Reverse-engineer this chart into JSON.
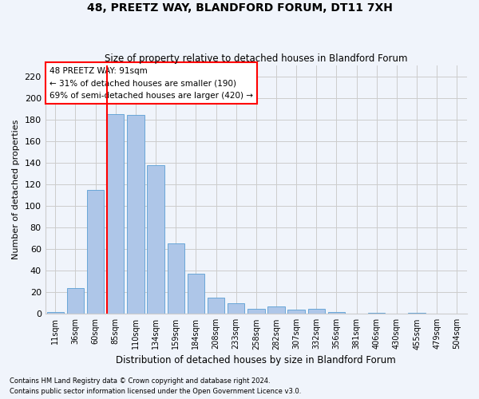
{
  "title1": "48, PREETZ WAY, BLANDFORD FORUM, DT11 7XH",
  "title2": "Size of property relative to detached houses in Blandford Forum",
  "xlabel": "Distribution of detached houses by size in Blandford Forum",
  "ylabel": "Number of detached properties",
  "footnote1": "Contains HM Land Registry data © Crown copyright and database right 2024.",
  "footnote2": "Contains public sector information licensed under the Open Government Licence v3.0.",
  "annotation_title": "48 PREETZ WAY: 91sqm",
  "annotation_line1": "← 31% of detached houses are smaller (190)",
  "annotation_line2": "69% of semi-detached houses are larger (420) →",
  "bar_labels": [
    "11sqm",
    "36sqm",
    "60sqm",
    "85sqm",
    "110sqm",
    "134sqm",
    "159sqm",
    "184sqm",
    "208sqm",
    "233sqm",
    "258sqm",
    "282sqm",
    "307sqm",
    "332sqm",
    "356sqm",
    "381sqm",
    "406sqm",
    "430sqm",
    "455sqm",
    "479sqm",
    "504sqm"
  ],
  "bar_values": [
    2,
    24,
    115,
    185,
    184,
    138,
    65,
    37,
    15,
    10,
    5,
    7,
    4,
    5,
    2,
    0,
    1,
    0,
    1,
    0,
    0
  ],
  "bar_color": "#aec6e8",
  "bar_edge_color": "#5a9fd4",
  "grid_color": "#cccccc",
  "vline_color": "red",
  "annotation_box_color": "white",
  "annotation_box_edge": "red",
  "ylim": [
    0,
    230
  ],
  "yticks": [
    0,
    20,
    40,
    60,
    80,
    100,
    120,
    140,
    160,
    180,
    200,
    220
  ],
  "background_color": "#f0f4fb"
}
